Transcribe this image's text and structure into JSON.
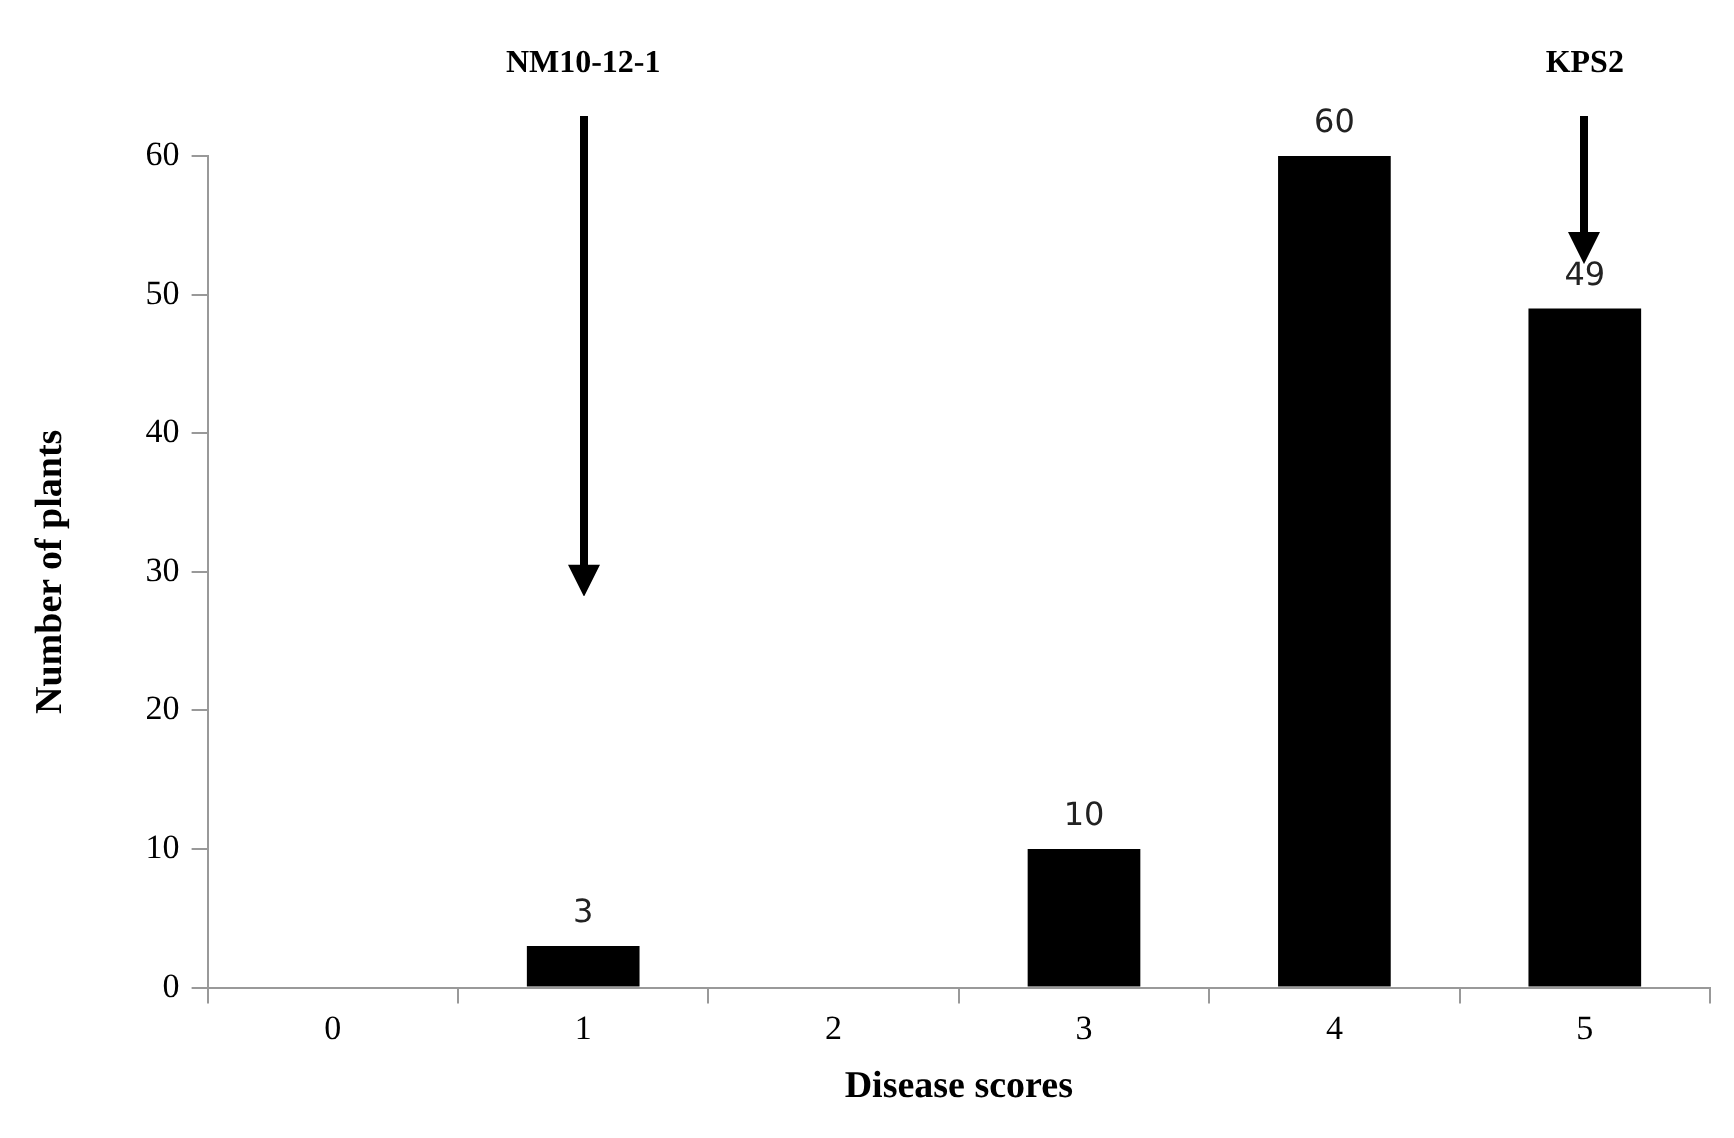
{
  "chart_data": {
    "type": "bar",
    "xlabel": "Disease scores",
    "ylabel": "Number of plants",
    "categories": [
      "0",
      "1",
      "2",
      "3",
      "4",
      "5"
    ],
    "values": [
      0,
      3,
      0,
      10,
      60,
      49
    ],
    "value_labels": [
      null,
      "3",
      null,
      "10",
      "60",
      "49"
    ],
    "color": "#000000",
    "ylim": [
      0,
      60
    ],
    "yticks": [
      0,
      10,
      20,
      30,
      40,
      50,
      60
    ],
    "grid": false,
    "legend": false,
    "annotations": [
      "NM10-12-1",
      "KPS2"
    ]
  }
}
